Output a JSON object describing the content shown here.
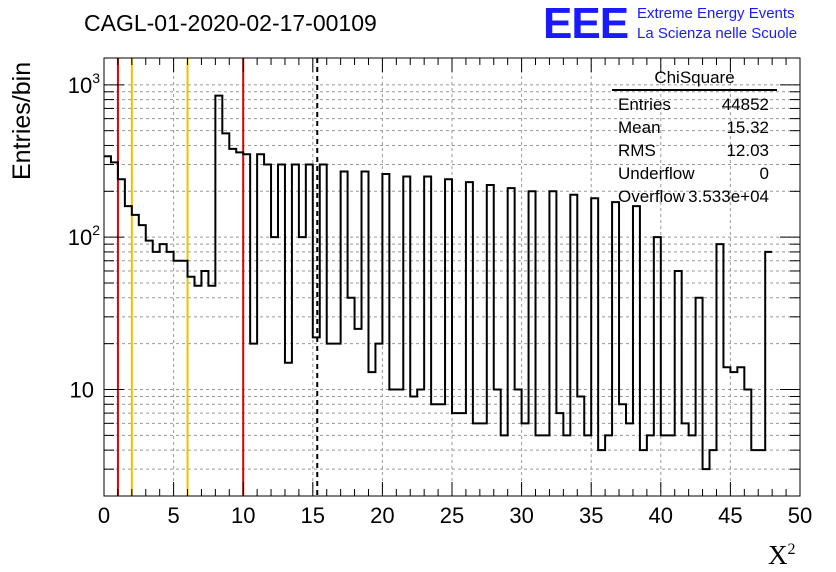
{
  "header": {
    "title": "CAGL-01-2020-02-17-00109",
    "logo": "EEE",
    "logo_line1": "Extreme Energy Events",
    "logo_line2": "La Scienza nelle Scuole"
  },
  "stats_box": {
    "title": "ChiSquare",
    "rows": [
      {
        "label": "Entries",
        "value": "44852"
      },
      {
        "label": "Mean",
        "value": "15.32"
      },
      {
        "label": "RMS",
        "value": "12.03"
      },
      {
        "label": "Underflow",
        "value": "0"
      },
      {
        "label": "Overflow",
        "value": "3.533e+04"
      }
    ]
  },
  "axes": {
    "xlabel": "X",
    "xlabel_sup": "2",
    "ylabel": "Entries/bin"
  },
  "chart_data": {
    "type": "histogram",
    "y_scale": "log",
    "xlim": [
      0,
      50
    ],
    "ylim": [
      2,
      1500
    ],
    "grid": true,
    "x_ticks": [
      "0",
      "5",
      "10",
      "15",
      "20",
      "25",
      "30",
      "35",
      "40",
      "45",
      "50"
    ],
    "y_ticks": [
      "10",
      "10^2",
      "10^3"
    ],
    "bin_width": 0.5,
    "values": [
      340,
      310,
      240,
      160,
      140,
      120,
      95,
      80,
      90,
      80,
      70,
      70,
      55,
      48,
      60,
      48,
      850,
      480,
      380,
      360,
      350,
      20,
      350,
      300,
      100,
      300,
      15,
      300,
      100,
      300,
      22,
      300,
      20,
      20,
      270,
      40,
      25,
      270,
      13,
      20,
      260,
      10,
      10,
      250,
      9,
      10,
      250,
      8,
      8,
      240,
      7,
      7,
      230,
      6,
      6,
      220,
      10,
      5,
      210,
      10,
      6,
      200,
      5,
      5,
      200,
      7,
      5,
      190,
      9,
      5,
      180,
      4,
      5,
      170,
      8,
      6,
      160,
      4,
      5,
      100,
      5,
      5,
      60,
      6,
      5,
      40,
      3,
      4,
      90,
      14,
      13,
      14,
      10,
      4,
      4,
      80
    ],
    "markers": [
      {
        "x": 1,
        "color": "#dd0000",
        "style": "solid"
      },
      {
        "x": 2,
        "color": "#f0c000",
        "style": "solid"
      },
      {
        "x": 6,
        "color": "#f0c000",
        "style": "solid"
      },
      {
        "x": 10,
        "color": "#dd0000",
        "style": "solid"
      },
      {
        "x": 15.32,
        "color": "#000000",
        "style": "dashed"
      }
    ]
  }
}
